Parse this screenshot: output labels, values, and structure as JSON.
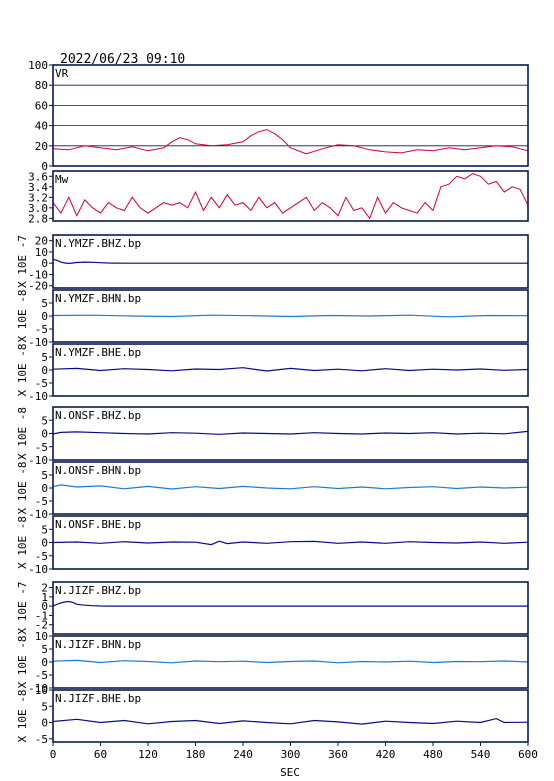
{
  "header": {
    "timestamp": "2022/06/23 09:10"
  },
  "chart_data": {
    "type": "line",
    "title": "2022/06/23 09:10",
    "xlabel": "SEC",
    "xlim": [
      0,
      600
    ],
    "xticks": [
      0,
      60,
      120,
      180,
      240,
      300,
      360,
      420,
      480,
      540,
      600
    ],
    "panels": [
      {
        "name": "VR",
        "ylim": [
          0,
          100
        ],
        "yticks": [
          0,
          20,
          40,
          60,
          80,
          100
        ],
        "ytick_labels": [
          "0",
          "20",
          "40",
          "60",
          "80",
          "100"
        ],
        "grid": true,
        "color": "#d2003c",
        "x": [
          0,
          20,
          40,
          60,
          80,
          100,
          120,
          140,
          150,
          160,
          170,
          180,
          200,
          220,
          240,
          250,
          260,
          270,
          280,
          290,
          300,
          320,
          340,
          360,
          380,
          400,
          420,
          440,
          460,
          480,
          500,
          520,
          540,
          560,
          580,
          600
        ],
        "values": [
          17,
          16,
          20,
          18,
          16,
          19,
          15,
          18,
          24,
          28,
          26,
          22,
          20,
          21,
          24,
          30,
          34,
          36,
          32,
          26,
          18,
          12,
          17,
          21,
          20,
          16,
          14,
          13,
          16,
          15,
          18,
          16,
          18,
          20,
          19,
          15
        ]
      },
      {
        "name": "Mw",
        "ylim": [
          2.75,
          3.7
        ],
        "yticks": [
          2.8,
          3.0,
          3.2,
          3.4,
          3.6
        ],
        "ytick_labels": [
          "2.8",
          "3.0",
          "3.2",
          "3.4",
          "3.6"
        ],
        "grid": false,
        "color": "#d2003c",
        "x": [
          0,
          10,
          20,
          30,
          40,
          50,
          60,
          70,
          80,
          90,
          100,
          110,
          120,
          130,
          140,
          150,
          160,
          170,
          180,
          190,
          200,
          210,
          220,
          230,
          240,
          250,
          260,
          270,
          280,
          290,
          300,
          310,
          320,
          330,
          340,
          350,
          360,
          370,
          380,
          390,
          400,
          410,
          420,
          430,
          440,
          450,
          460,
          470,
          480,
          490,
          500,
          510,
          520,
          530,
          540,
          550,
          560,
          570,
          580,
          590,
          600
        ],
        "values": [
          3.1,
          2.9,
          3.2,
          2.85,
          3.15,
          3.0,
          2.9,
          3.1,
          3.0,
          2.95,
          3.2,
          3.0,
          2.9,
          3.0,
          3.1,
          3.05,
          3.1,
          3.0,
          3.3,
          2.95,
          3.2,
          3.0,
          3.25,
          3.05,
          3.1,
          2.95,
          3.2,
          3.0,
          3.1,
          2.9,
          3.0,
          3.1,
          3.2,
          2.95,
          3.1,
          3.0,
          2.85,
          3.2,
          2.95,
          3.0,
          2.8,
          3.2,
          2.9,
          3.1,
          3.0,
          2.95,
          2.9,
          3.1,
          2.95,
          3.4,
          3.45,
          3.6,
          3.55,
          3.65,
          3.6,
          3.45,
          3.5,
          3.3,
          3.4,
          3.35,
          3.05
        ]
      },
      {
        "name": "N.YMZF.BHZ.bp",
        "unit": "X 10E -7",
        "ylim": [
          -22,
          25
        ],
        "yticks": [
          -20,
          -10,
          0,
          10,
          20
        ],
        "ytick_labels": [
          "-20",
          "-10",
          "0",
          "10",
          "20"
        ],
        "color": "#0a0a8c",
        "x": [
          0,
          5,
          10,
          15,
          20,
          25,
          30,
          40,
          50,
          60,
          70,
          80,
          90,
          100,
          600
        ],
        "values": [
          3.5,
          2.5,
          1.0,
          0.2,
          -0.2,
          0.2,
          0.6,
          1.0,
          0.8,
          0.4,
          0.2,
          0.1,
          0.0,
          0.0,
          0.0
        ]
      },
      {
        "name": "N.YMZF.BHN.bp",
        "unit": "X 10E -8",
        "ylim": [
          -10,
          10
        ],
        "yticks": [
          -10,
          -5,
          0,
          5
        ],
        "ytick_labels": [
          "-10",
          "-5",
          "0",
          "5"
        ],
        "color": "#1e7ad2",
        "x": [
          0,
          50,
          100,
          150,
          200,
          250,
          300,
          350,
          400,
          450,
          500,
          550,
          600
        ],
        "values": [
          0.2,
          0.3,
          0.0,
          -0.2,
          0.3,
          0.1,
          -0.2,
          0.2,
          0.0,
          0.3,
          -0.3,
          0.2,
          0.1
        ]
      },
      {
        "name": "N.YMZF.BHE.bp",
        "unit": "X 10E -8",
        "ylim": [
          -10,
          10
        ],
        "yticks": [
          -10,
          -5,
          0,
          5
        ],
        "ytick_labels": [
          "-10",
          "-5",
          "0",
          "5"
        ],
        "color": "#0a0a8c",
        "x": [
          0,
          30,
          60,
          90,
          120,
          150,
          180,
          210,
          240,
          270,
          300,
          330,
          360,
          390,
          420,
          450,
          480,
          510,
          540,
          570,
          600
        ],
        "values": [
          0.3,
          0.6,
          -0.2,
          0.5,
          0.2,
          -0.3,
          0.4,
          0.2,
          0.9,
          -0.4,
          0.6,
          -0.2,
          0.3,
          -0.3,
          0.5,
          -0.2,
          0.3,
          0.0,
          0.4,
          -0.1,
          0.2
        ]
      },
      {
        "name": "N.ONSF.BHZ.bp",
        "unit": "X 10E -8",
        "ylim": [
          -10,
          10
        ],
        "yticks": [
          -10,
          -5,
          0,
          5
        ],
        "ytick_labels": [
          "-10",
          "-5",
          "0",
          "5"
        ],
        "color": "#0a0a8c",
        "x": [
          0,
          10,
          30,
          60,
          90,
          120,
          150,
          180,
          210,
          240,
          270,
          300,
          330,
          360,
          390,
          420,
          450,
          480,
          510,
          540,
          570,
          600
        ],
        "values": [
          -0.2,
          0.4,
          0.6,
          0.3,
          0.0,
          -0.2,
          0.3,
          0.1,
          -0.3,
          0.2,
          0.0,
          -0.2,
          0.3,
          0.0,
          -0.2,
          0.2,
          0.0,
          0.3,
          -0.2,
          0.1,
          -0.1,
          0.8
        ]
      },
      {
        "name": "N.ONSF.BHN.bp",
        "unit": "X 10E -8",
        "ylim": [
          -10,
          10
        ],
        "yticks": [
          -10,
          -5,
          0,
          5
        ],
        "ytick_labels": [
          "-10",
          "-5",
          "0",
          "5"
        ],
        "color": "#1e7ad2",
        "x": [
          0,
          10,
          30,
          60,
          90,
          120,
          150,
          180,
          210,
          240,
          270,
          300,
          330,
          360,
          390,
          420,
          450,
          480,
          510,
          540,
          570,
          600
        ],
        "values": [
          0.5,
          1.2,
          0.4,
          0.8,
          -0.3,
          0.6,
          -0.4,
          0.5,
          -0.2,
          0.6,
          0.0,
          -0.3,
          0.5,
          -0.2,
          0.4,
          -0.3,
          0.2,
          0.5,
          -0.2,
          0.4,
          0.0,
          0.3
        ]
      },
      {
        "name": "N.ONSF.BHE.bp",
        "unit": "X 10E -8",
        "ylim": [
          -10,
          10
        ],
        "yticks": [
          -10,
          -5,
          0,
          5
        ],
        "ytick_labels": [
          "-10",
          "-5",
          "0",
          "5"
        ],
        "color": "#0a0a8c",
        "x": [
          0,
          30,
          60,
          90,
          120,
          150,
          180,
          200,
          210,
          220,
          240,
          270,
          300,
          330,
          360,
          390,
          420,
          450,
          480,
          510,
          540,
          570,
          600
        ],
        "values": [
          0.0,
          0.2,
          -0.3,
          0.3,
          -0.2,
          0.2,
          0.1,
          -0.8,
          0.5,
          -0.4,
          0.2,
          -0.3,
          0.3,
          0.4,
          -0.3,
          0.2,
          -0.3,
          0.3,
          0.0,
          -0.2,
          0.2,
          -0.3,
          0.1
        ]
      },
      {
        "name": "N.JIZF.BHZ.bp",
        "unit": "X 10E -7",
        "ylim": [
          -3,
          2.6
        ],
        "yticks": [
          -2,
          -1,
          0,
          1,
          2
        ],
        "ytick_labels": [
          "-2",
          "-1",
          "0",
          "1",
          "2"
        ],
        "color": "#0a0a8c",
        "x": [
          0,
          5,
          10,
          15,
          20,
          25,
          30,
          40,
          50,
          60,
          70,
          600
        ],
        "values": [
          0.0,
          0.2,
          0.35,
          0.45,
          0.5,
          0.4,
          0.2,
          0.1,
          0.05,
          0.02,
          0.0,
          0.0
        ]
      },
      {
        "name": "N.JIZF.BHN.bp",
        "unit": "X 10E -8",
        "ylim": [
          -10,
          10
        ],
        "yticks": [
          -10,
          -5,
          0,
          5,
          10
        ],
        "ytick_labels": [
          "-10",
          "-5",
          "0",
          "5",
          "10"
        ],
        "color": "#1e7ad2",
        "x": [
          0,
          30,
          60,
          90,
          120,
          150,
          180,
          210,
          240,
          270,
          300,
          330,
          360,
          390,
          420,
          450,
          480,
          510,
          540,
          570,
          600
        ],
        "values": [
          0.3,
          0.6,
          -0.2,
          0.5,
          0.2,
          -0.3,
          0.4,
          0.1,
          0.3,
          -0.2,
          0.2,
          0.4,
          -0.3,
          0.2,
          0.0,
          0.3,
          -0.2,
          0.2,
          0.1,
          0.4,
          0.0
        ]
      },
      {
        "name": "N.JIZF.BHE.bp",
        "unit": "X 10E -8",
        "ylim": [
          -6,
          10
        ],
        "yticks": [
          -5,
          0,
          5,
          10
        ],
        "ytick_labels": [
          "-5",
          "0",
          "5",
          "10"
        ],
        "color": "#0a0a8c",
        "x": [
          0,
          30,
          60,
          90,
          120,
          150,
          180,
          210,
          240,
          270,
          300,
          330,
          360,
          390,
          420,
          450,
          480,
          510,
          540,
          560,
          570,
          600
        ],
        "values": [
          0.3,
          1.0,
          0.0,
          0.6,
          -0.4,
          0.3,
          0.6,
          -0.3,
          0.5,
          0.0,
          -0.4,
          0.6,
          0.2,
          -0.5,
          0.4,
          0.0,
          -0.3,
          0.4,
          0.0,
          1.2,
          0.0,
          0.1
        ]
      }
    ]
  }
}
